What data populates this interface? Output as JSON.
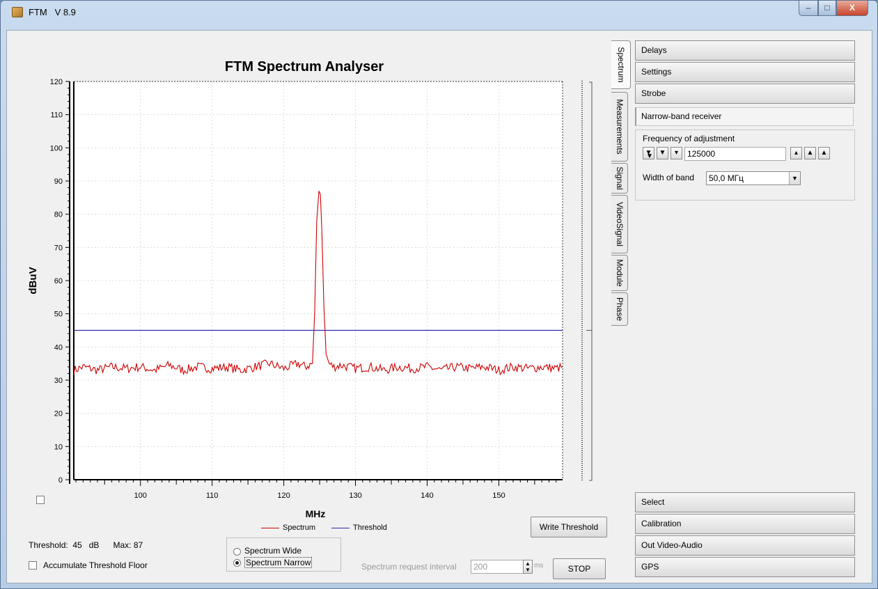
{
  "window": {
    "app_name": "FTM",
    "version": "V 8.9",
    "buttons": {
      "minimize": "–",
      "maximize": "□",
      "close": "X"
    }
  },
  "chart_data": {
    "type": "line",
    "title": "FTM Spectrum Analyser",
    "xlabel": "MHz",
    "ylabel": "dBuV",
    "xlim": [
      90.7,
      158.9
    ],
    "ylim": [
      0,
      120
    ],
    "x_ticks": [
      100,
      110,
      120,
      130,
      140,
      150
    ],
    "y_ticks": [
      0,
      10,
      20,
      30,
      40,
      50,
      60,
      70,
      80,
      90,
      100,
      110,
      120
    ],
    "grid": true,
    "legend_placement": "bottom-center",
    "series": [
      {
        "name": "Spectrum",
        "color": "#cc0000",
        "noise_floor_range": [
          32,
          36
        ],
        "peak": {
          "x": 125.0,
          "y": 87
        },
        "x": [
          90.7,
          92,
          94,
          96,
          98,
          100,
          102,
          104,
          106,
          108,
          110,
          112,
          114,
          116,
          118,
          120,
          122,
          123,
          124,
          124.3,
          124.6,
          124.9,
          125.1,
          125.3,
          125.6,
          125.9,
          126.3,
          127,
          128,
          130,
          132,
          134,
          136,
          138,
          140,
          142,
          144,
          146,
          148,
          150,
          152,
          154,
          156,
          158,
          158.9
        ],
        "y": [
          33,
          34,
          33,
          34,
          33.5,
          34,
          33,
          34.5,
          33,
          34,
          33.5,
          34,
          33,
          34,
          35,
          33.5,
          35,
          34,
          35,
          50,
          78,
          87,
          86,
          76,
          52,
          38,
          35,
          34,
          34.5,
          33.5,
          34,
          33,
          34,
          33.5,
          34,
          33,
          34,
          33.5,
          34,
          33,
          34,
          33.5,
          34,
          33.5,
          34
        ]
      },
      {
        "name": "Threshold",
        "color": "#2a2aa8",
        "x": [
          90.7,
          158.9
        ],
        "y": [
          45,
          45
        ]
      }
    ]
  },
  "bottom": {
    "threshold_label": "Threshold:",
    "threshold_value": "45",
    "threshold_unit": "dB",
    "max_label": "Max:",
    "max_value": "87",
    "accumulate_label": "Accumulate Threshold Floor",
    "radio_wide": "Spectrum Wide",
    "radio_narrow": "Spectrum Narrow",
    "write_threshold": "Write Threshold",
    "interval_label": "Spectrum request interval",
    "interval_value": "200",
    "interval_unit": "ms",
    "stop": "STOP"
  },
  "tabs": [
    "Spectrum",
    "Measurements",
    "Signal",
    "VideoSignal",
    "Module",
    "Phase"
  ],
  "side_top": [
    "Delays",
    "Settings",
    "Strobe"
  ],
  "narrowband": {
    "title": "Narrow-band receiver",
    "freq_label": "Frequency of adjustment",
    "freq_value": "125000",
    "band_label": "Width of band",
    "band_value": "50,0 МГц"
  },
  "side_bottom": [
    "Select",
    "Calibration",
    "Out Video-Audio",
    "GPS"
  ]
}
